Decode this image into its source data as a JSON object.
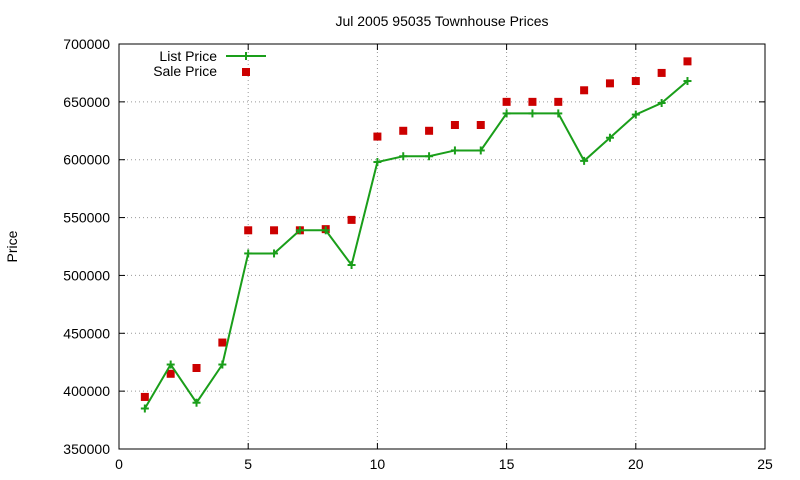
{
  "chart_data": {
    "type": "line",
    "title": "Jul 2005 95035 Townhouse Prices",
    "xlabel": "",
    "ylabel": "Price",
    "xlim": [
      0,
      25
    ],
    "ylim": [
      350000,
      700000
    ],
    "x_ticks": [
      0,
      5,
      10,
      15,
      20,
      25
    ],
    "x_tick_labels": [
      "0",
      "5",
      "10",
      "15",
      "20",
      "25"
    ],
    "y_ticks": [
      350000,
      400000,
      450000,
      500000,
      550000,
      600000,
      650000,
      700000
    ],
    "y_tick_labels": [
      "350000",
      "400000",
      "450000",
      "500000",
      "550000",
      "600000",
      "650000",
      "700000"
    ],
    "grid": true,
    "legend_position": "top-left",
    "series": [
      {
        "name": "List Price",
        "style": "line-cross",
        "color": "#1a9e1a",
        "x": [
          1,
          2,
          3,
          4,
          5,
          6,
          7,
          8,
          9,
          10,
          11,
          12,
          13,
          14,
          15,
          16,
          17,
          18,
          19,
          20,
          21,
          22
        ],
        "y": [
          385000,
          423000,
          390000,
          423000,
          519000,
          519000,
          539000,
          539000,
          509000,
          598000,
          603000,
          603000,
          608000,
          608000,
          640000,
          640000,
          640000,
          599000,
          619000,
          639000,
          649000,
          668000
        ]
      },
      {
        "name": "Sale Price",
        "style": "square",
        "color": "#cc0000",
        "x": [
          1,
          2,
          3,
          4,
          5,
          6,
          7,
          8,
          9,
          10,
          11,
          12,
          13,
          14,
          15,
          16,
          17,
          18,
          19,
          20,
          21,
          22
        ],
        "y": [
          395000,
          415000,
          420000,
          442000,
          539000,
          539000,
          539000,
          540000,
          548000,
          620000,
          625000,
          625000,
          630000,
          630000,
          650000,
          650000,
          650000,
          660000,
          666000,
          668000,
          675000,
          685000
        ]
      }
    ]
  }
}
